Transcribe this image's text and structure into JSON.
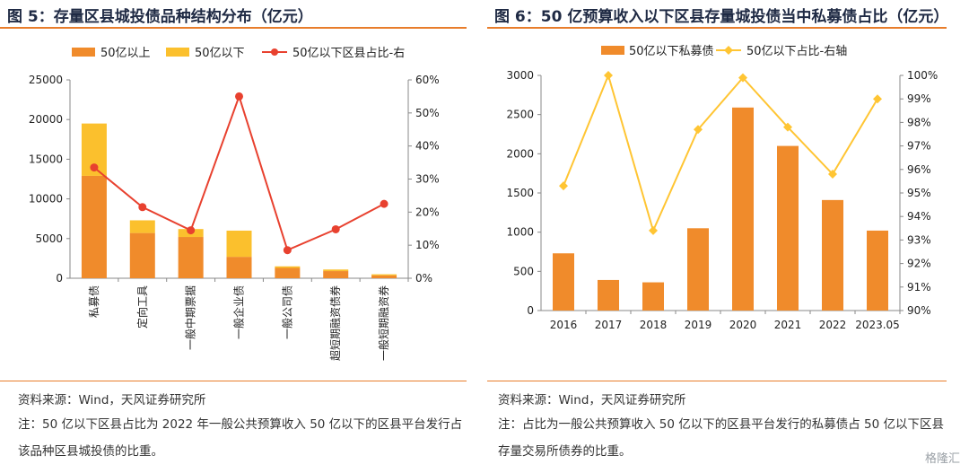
{
  "left": {
    "title": "图 5：存量区县城投债品种结构分布（亿元）",
    "source": "资料来源：Wind，天风证券研究所",
    "note": "注：50 亿以下区县占比为 2022 年一般公共预算收入 50 亿以下的区县平台发行占该品种区县城投债的比重。"
  },
  "right": {
    "title": "图 6：50 亿预算收入以下区县存量城投债当中私募债占比（亿元）",
    "source": "资料来源：Wind，天风证券研究所",
    "note": "注：占比为一般公共预算收入 50 亿以下的区县平台发行的私募债占 50 亿以下区县存量交易所债券的比重。"
  },
  "colors": {
    "orange": "#f08b2b",
    "yellow": "#fbc02d",
    "red": "#e8412f",
    "gold": "#ffc533",
    "rule": "#e87d2b"
  },
  "watermark": "格隆汇",
  "chart_data": [
    {
      "type": "bar",
      "stacked": true,
      "categories": [
        "私募债",
        "定向工具",
        "一般中期票据",
        "一般企业债",
        "一般公司债",
        "超短期融资债券",
        "一般短期融资券"
      ],
      "series": [
        {
          "name": "50亿以上",
          "values": [
            12900,
            5700,
            5200,
            2700,
            1300,
            900,
            350
          ]
        },
        {
          "name": "50亿以下",
          "values": [
            6600,
            1600,
            1000,
            3300,
            200,
            200,
            150
          ]
        },
        {
          "name": "50亿以下区县占比-右",
          "axis": "right",
          "type": "line",
          "values": [
            33.5,
            21.5,
            14.5,
            55,
            8.5,
            14.8,
            22.5
          ]
        }
      ],
      "ylim": [
        0,
        25000
      ],
      "yticks": [
        0,
        5000,
        10000,
        15000,
        20000,
        25000
      ],
      "y2lim": [
        0,
        60
      ],
      "y2ticks": [
        "0%",
        "10%",
        "20%",
        "30%",
        "40%",
        "50%",
        "60%"
      ],
      "legend": "top"
    },
    {
      "type": "bar",
      "categories": [
        "2016",
        "2017",
        "2018",
        "2019",
        "2020",
        "2021",
        "2022",
        "2023.05"
      ],
      "series": [
        {
          "name": "50亿以下私募债",
          "values": [
            730,
            390,
            360,
            1050,
            2590,
            2100,
            1410,
            1020
          ]
        },
        {
          "name": "50亿以下占比-右轴",
          "axis": "right",
          "type": "line",
          "values": [
            95.3,
            100,
            93.4,
            97.7,
            99.9,
            97.8,
            95.8,
            99
          ]
        }
      ],
      "ylim": [
        0,
        3000
      ],
      "yticks": [
        0,
        500,
        1000,
        1500,
        2000,
        2500,
        3000
      ],
      "y2lim": [
        90,
        100
      ],
      "y2ticks": [
        "90%",
        "91%",
        "92%",
        "93%",
        "94%",
        "95%",
        "96%",
        "97%",
        "98%",
        "99%",
        "100%"
      ],
      "legend": "top"
    }
  ]
}
